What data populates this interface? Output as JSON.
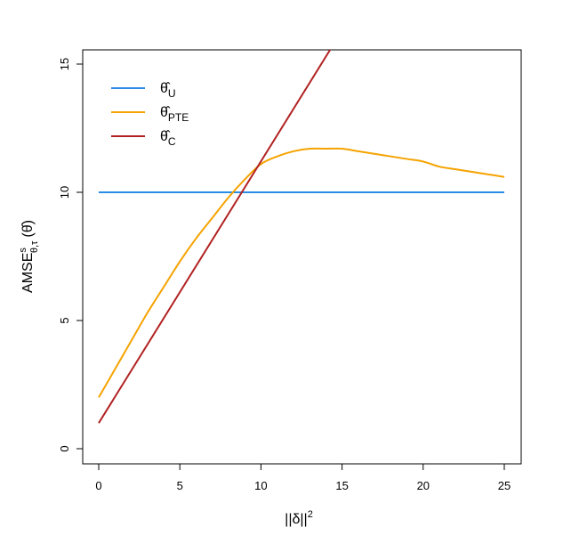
{
  "chart_data": {
    "type": "line",
    "xlabel_base": "||δ||",
    "xlabel_sup": "2",
    "ylabel_base": "AMSE",
    "ylabel_sup": "s",
    "ylabel_sub": "θ,τ",
    "ylabel_arg": "(θ̂)",
    "xlim": [
      0,
      25
    ],
    "ylim": [
      0,
      15
    ],
    "xticks": [
      0,
      5,
      10,
      15,
      20,
      25
    ],
    "yticks": [
      0,
      5,
      10,
      15
    ],
    "grid": false,
    "legend_position": "top-left",
    "series": [
      {
        "name": "θ̂U",
        "legend_base": "θ̂",
        "legend_sub": "U",
        "color": "#2b8ce6",
        "x": [
          0,
          25
        ],
        "y": [
          10,
          10
        ]
      },
      {
        "name": "θ̂PTE",
        "legend_base": "θ̂",
        "legend_sub": "PTE",
        "color": "#f5a300",
        "x": [
          0,
          1,
          2,
          3,
          4,
          5,
          6,
          7,
          8,
          9,
          10,
          11,
          12,
          13,
          14,
          15,
          16,
          17,
          18,
          19,
          20,
          21,
          22,
          23,
          24,
          25
        ],
        "y": [
          2.0,
          3.1,
          4.2,
          5.3,
          6.3,
          7.3,
          8.2,
          9.0,
          9.8,
          10.5,
          11.1,
          11.4,
          11.6,
          11.7,
          11.7,
          11.7,
          11.6,
          11.5,
          11.4,
          11.3,
          11.2,
          11.0,
          10.9,
          10.8,
          10.7,
          10.6
        ]
      },
      {
        "name": "θ̂C",
        "legend_base": "θ̂",
        "legend_sub": "C",
        "color": "#b22222",
        "x": [
          0,
          14.5
        ],
        "y": [
          1,
          15.8
        ]
      }
    ]
  }
}
